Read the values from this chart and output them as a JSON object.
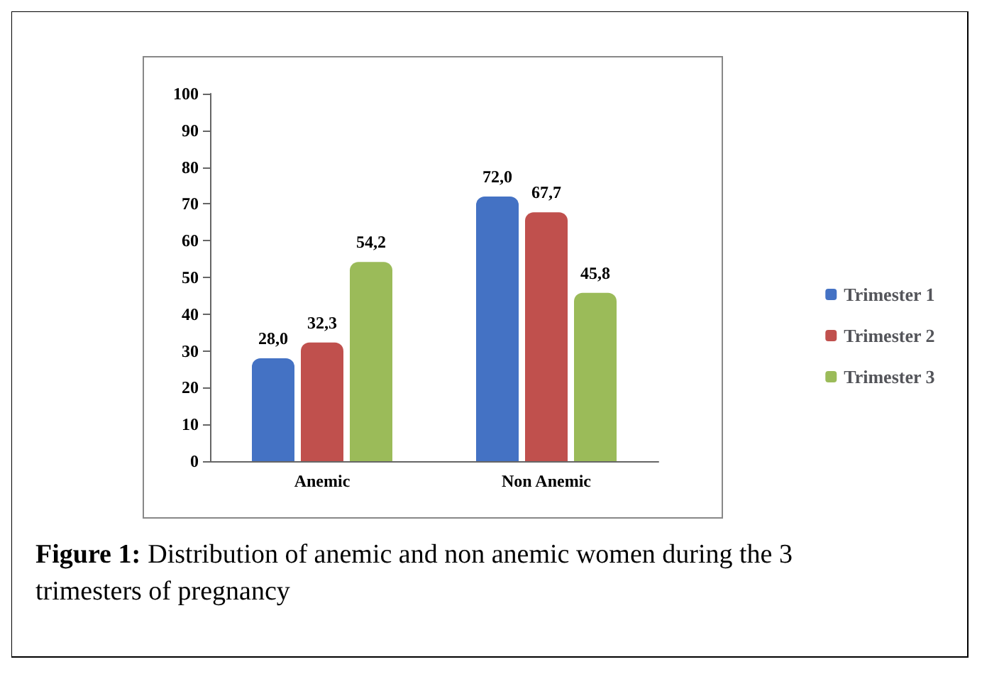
{
  "chart_data": {
    "type": "bar",
    "categories": [
      "Anemic",
      "Non Anemic"
    ],
    "series": [
      {
        "name": "Trimester 1",
        "color": "#4472c4",
        "values": [
          28.0,
          72.0
        ],
        "value_labels": [
          "28,0",
          "72,0"
        ]
      },
      {
        "name": "Trimester 2",
        "color": "#c0504d",
        "values": [
          32.3,
          67.7
        ],
        "value_labels": [
          "32,3",
          "67,7"
        ]
      },
      {
        "name": "Trimester 3",
        "color": "#9bbb59",
        "values": [
          54.2,
          45.8
        ],
        "value_labels": [
          "54,2",
          "45,8"
        ]
      }
    ],
    "ylim": [
      0,
      100
    ],
    "yticks": [
      0,
      10,
      20,
      30,
      40,
      50,
      60,
      70,
      80,
      90,
      100
    ],
    "grid": false,
    "legend": "right",
    "annotations": [
      "Figure 1: Distribution of anemic and non anemic women during the 3 trimesters of pregnancy"
    ]
  }
}
